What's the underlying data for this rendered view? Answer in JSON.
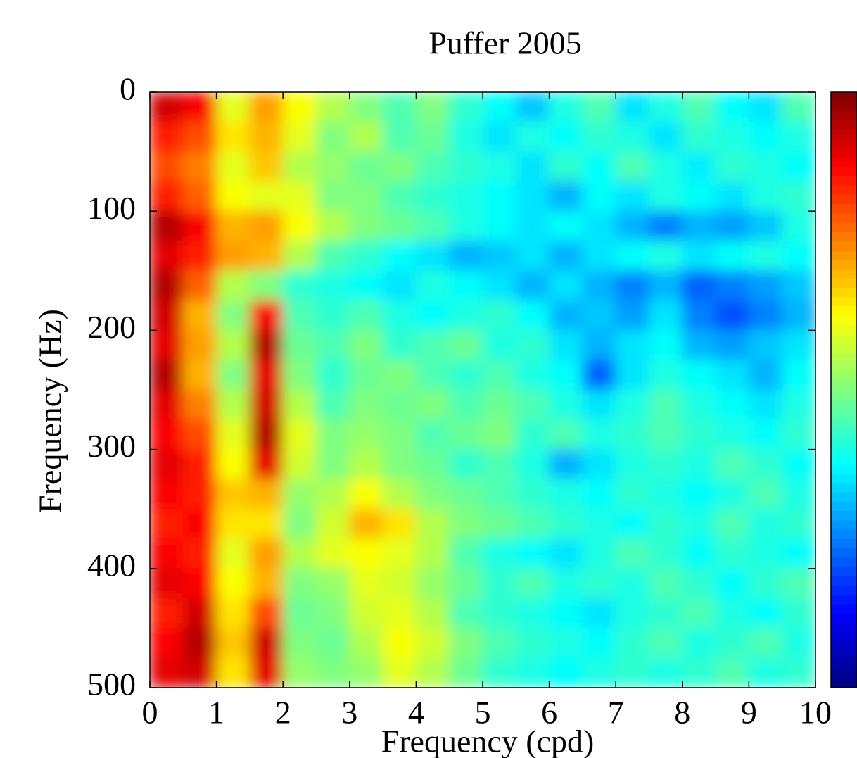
{
  "chart_data": {
    "type": "heatmap",
    "title": "Puffer 2005",
    "xlabel": "Frequency (cpd)",
    "ylabel": "Frequency (Hz)",
    "xlim": [
      0,
      10
    ],
    "xticks": [
      0,
      1,
      2,
      3,
      4,
      5,
      6,
      7,
      8,
      9,
      10
    ],
    "ylim": [
      500,
      0
    ],
    "yticks": [
      0,
      100,
      200,
      300,
      400,
      500
    ],
    "zlim": [
      0,
      1
    ],
    "colormap": "jet",
    "colorbar": true,
    "z": [
      [
        0.92,
        0.88,
        0.6,
        0.72,
        0.62,
        0.55,
        0.5,
        0.45,
        0.5,
        0.42,
        0.38,
        0.32,
        0.4,
        0.45,
        0.35,
        0.4,
        0.45,
        0.38,
        0.35,
        0.45
      ],
      [
        0.85,
        0.8,
        0.65,
        0.7,
        0.6,
        0.5,
        0.55,
        0.45,
        0.48,
        0.4,
        0.35,
        0.4,
        0.38,
        0.42,
        0.4,
        0.35,
        0.42,
        0.4,
        0.38,
        0.4
      ],
      [
        0.8,
        0.75,
        0.6,
        0.68,
        0.55,
        0.52,
        0.48,
        0.5,
        0.45,
        0.42,
        0.4,
        0.35,
        0.42,
        0.38,
        0.45,
        0.4,
        0.36,
        0.42,
        0.4,
        0.38
      ],
      [
        0.85,
        0.78,
        0.62,
        0.6,
        0.6,
        0.5,
        0.5,
        0.45,
        0.42,
        0.4,
        0.38,
        0.35,
        0.3,
        0.38,
        0.35,
        0.4,
        0.38,
        0.35,
        0.4,
        0.42
      ],
      [
        0.95,
        0.88,
        0.7,
        0.72,
        0.62,
        0.55,
        0.5,
        0.48,
        0.45,
        0.4,
        0.38,
        0.35,
        0.38,
        0.35,
        0.3,
        0.25,
        0.3,
        0.28,
        0.32,
        0.4
      ],
      [
        0.9,
        0.85,
        0.72,
        0.7,
        0.55,
        0.45,
        0.42,
        0.38,
        0.35,
        0.3,
        0.32,
        0.35,
        0.3,
        0.35,
        0.38,
        0.4,
        0.35,
        0.38,
        0.4,
        0.38
      ],
      [
        0.95,
        0.78,
        0.55,
        0.5,
        0.42,
        0.4,
        0.38,
        0.35,
        0.4,
        0.38,
        0.35,
        0.3,
        0.35,
        0.3,
        0.25,
        0.3,
        0.22,
        0.25,
        0.28,
        0.32
      ],
      [
        0.92,
        0.7,
        0.5,
        0.88,
        0.45,
        0.42,
        0.45,
        0.4,
        0.38,
        0.4,
        0.42,
        0.38,
        0.3,
        0.32,
        0.28,
        0.35,
        0.25,
        0.2,
        0.25,
        0.3
      ],
      [
        0.9,
        0.72,
        0.55,
        0.95,
        0.48,
        0.45,
        0.5,
        0.42,
        0.45,
        0.48,
        0.4,
        0.42,
        0.35,
        0.3,
        0.35,
        0.38,
        0.3,
        0.28,
        0.32,
        0.35
      ],
      [
        0.95,
        0.7,
        0.5,
        0.9,
        0.5,
        0.42,
        0.48,
        0.5,
        0.45,
        0.42,
        0.45,
        0.4,
        0.38,
        0.22,
        0.35,
        0.4,
        0.38,
        0.35,
        0.3,
        0.38
      ],
      [
        0.9,
        0.75,
        0.55,
        0.92,
        0.55,
        0.45,
        0.5,
        0.48,
        0.5,
        0.45,
        0.48,
        0.45,
        0.4,
        0.35,
        0.4,
        0.45,
        0.4,
        0.38,
        0.35,
        0.4
      ],
      [
        0.88,
        0.8,
        0.6,
        0.95,
        0.6,
        0.5,
        0.52,
        0.5,
        0.45,
        0.48,
        0.5,
        0.42,
        0.45,
        0.4,
        0.42,
        0.45,
        0.42,
        0.4,
        0.38,
        0.42
      ],
      [
        0.9,
        0.85,
        0.62,
        0.9,
        0.58,
        0.5,
        0.55,
        0.5,
        0.48,
        0.42,
        0.45,
        0.4,
        0.3,
        0.35,
        0.4,
        0.42,
        0.4,
        0.45,
        0.42,
        0.38
      ],
      [
        0.88,
        0.85,
        0.68,
        0.7,
        0.52,
        0.55,
        0.62,
        0.55,
        0.5,
        0.48,
        0.45,
        0.42,
        0.4,
        0.38,
        0.42,
        0.4,
        0.38,
        0.4,
        0.45,
        0.4
      ],
      [
        0.85,
        0.88,
        0.65,
        0.65,
        0.5,
        0.58,
        0.7,
        0.65,
        0.55,
        0.5,
        0.48,
        0.45,
        0.42,
        0.4,
        0.38,
        0.42,
        0.4,
        0.45,
        0.4,
        0.42
      ],
      [
        0.88,
        0.85,
        0.6,
        0.72,
        0.55,
        0.6,
        0.62,
        0.6,
        0.55,
        0.45,
        0.4,
        0.38,
        0.35,
        0.4,
        0.45,
        0.42,
        0.38,
        0.42,
        0.4,
        0.38
      ],
      [
        0.9,
        0.88,
        0.62,
        0.7,
        0.5,
        0.52,
        0.6,
        0.58,
        0.52,
        0.48,
        0.42,
        0.45,
        0.4,
        0.42,
        0.4,
        0.45,
        0.42,
        0.38,
        0.42,
        0.45
      ],
      [
        0.85,
        0.92,
        0.65,
        0.8,
        0.48,
        0.5,
        0.58,
        0.6,
        0.55,
        0.45,
        0.42,
        0.4,
        0.38,
        0.35,
        0.4,
        0.42,
        0.45,
        0.4,
        0.38,
        0.42
      ],
      [
        0.88,
        0.95,
        0.68,
        0.92,
        0.5,
        0.48,
        0.55,
        0.62,
        0.58,
        0.5,
        0.45,
        0.42,
        0.4,
        0.38,
        0.42,
        0.45,
        0.4,
        0.42,
        0.45,
        0.4
      ],
      [
        0.9,
        0.92,
        0.65,
        0.9,
        0.52,
        0.5,
        0.52,
        0.6,
        0.55,
        0.48,
        0.42,
        0.4,
        0.38,
        0.4,
        0.42,
        0.4,
        0.42,
        0.45,
        0.4,
        0.42
      ]
    ]
  }
}
